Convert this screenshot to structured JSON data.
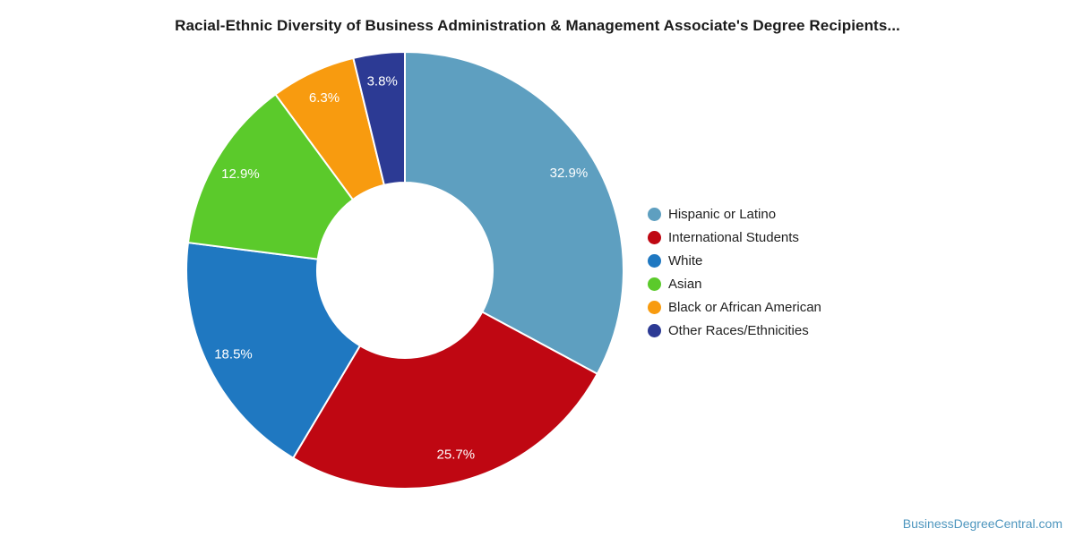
{
  "page": {
    "background_color": "#ffffff"
  },
  "chart_data": {
    "type": "pie",
    "subtype": "donut",
    "title": "Racial-Ethnic Diversity of Business Administration & Management Associate's Degree Recipients...",
    "title_color": "#1a1a1a",
    "labels": [
      "Hispanic or Latino",
      "International Students",
      "White",
      "Asian",
      "Black or African American",
      "Other Races/Ethnicities"
    ],
    "values": [
      32.9,
      25.7,
      18.5,
      12.9,
      6.3,
      3.8
    ],
    "value_labels": [
      "32.9%",
      "25.7%",
      "18.5%",
      "12.9%",
      "6.3%",
      "3.8%"
    ],
    "colors": [
      "#5E9FC0",
      "#BF0712",
      "#1F78C1",
      "#5BCA2B",
      "#F89B0F",
      "#2C3A94"
    ],
    "inner_radius_ratio": 0.4,
    "start_angle_deg": 0,
    "direction": "clockwise",
    "slice_border_color": "#ffffff",
    "slice_label_color": "#ffffff",
    "legend_position": "right",
    "legend_text_color": "#212121"
  },
  "footer": {
    "link_text": "BusinessDegreeCentral.com",
    "link_color": "#4E96BE"
  }
}
